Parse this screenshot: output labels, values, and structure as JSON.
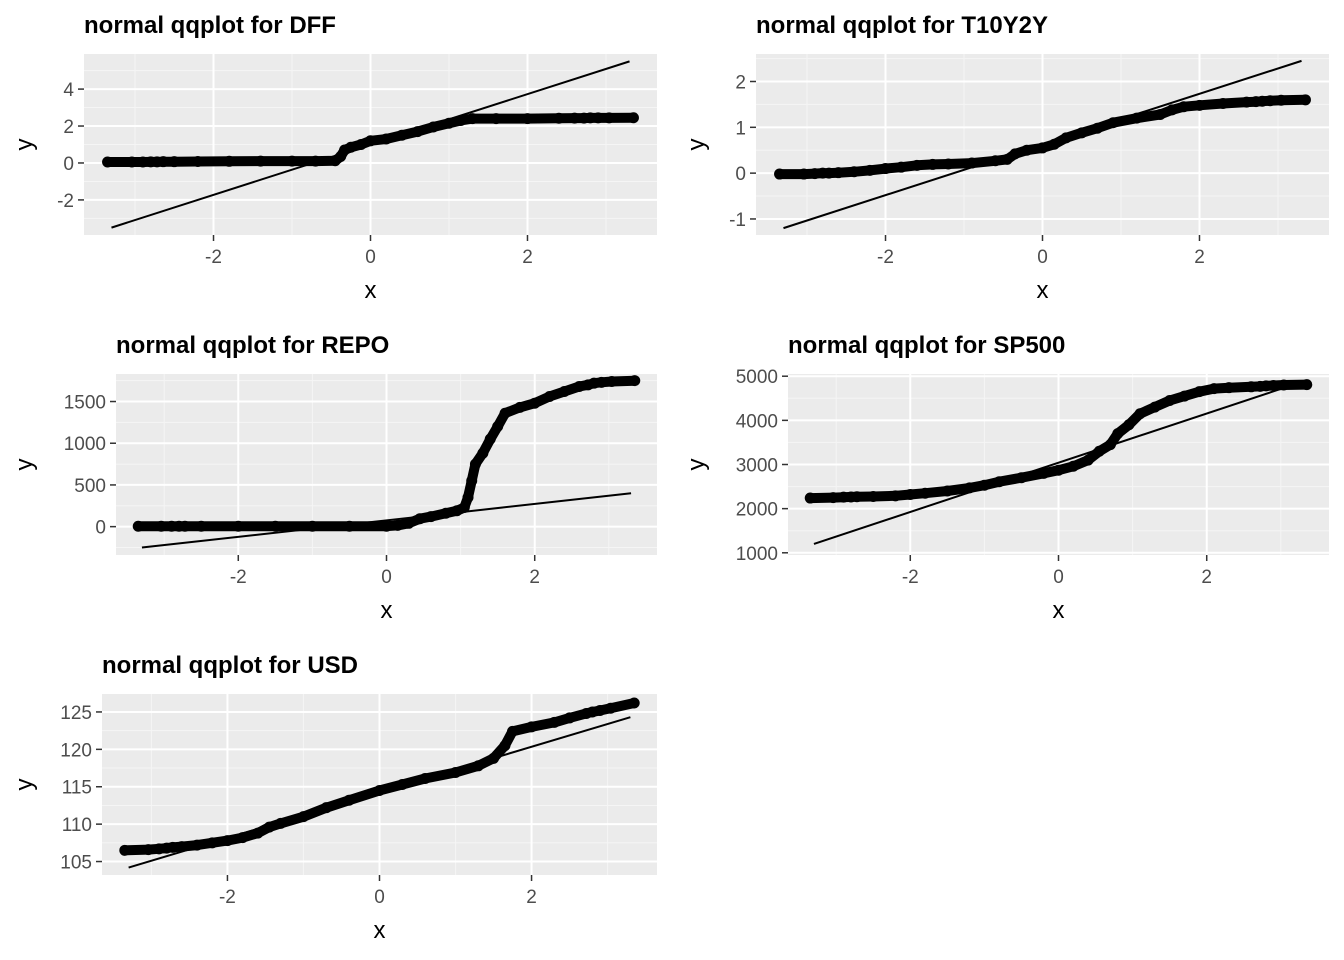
{
  "chart_data": [
    {
      "type": "scatter",
      "title": "normal qqplot for DFF",
      "xlabel": "x",
      "ylabel": "y",
      "xlim": [
        -3.65,
        3.65
      ],
      "ylim": [
        -3.9,
        5.9
      ],
      "xticks": [
        -2,
        0,
        2
      ],
      "yticks": [
        -2,
        0,
        2,
        4
      ],
      "grid": true,
      "points": [
        [
          -3.35,
          0.05
        ],
        [
          -3.04,
          0.05
        ],
        [
          -2.9,
          0.05
        ],
        [
          -2.8,
          0.06
        ],
        [
          -2.72,
          0.06
        ],
        [
          -2.64,
          0.07
        ],
        [
          -2.5,
          0.07
        ],
        [
          -2.2,
          0.08
        ],
        [
          -1.8,
          0.09
        ],
        [
          -1.4,
          0.1
        ],
        [
          -1.0,
          0.1
        ],
        [
          -0.7,
          0.1
        ],
        [
          -0.45,
          0.12
        ],
        [
          -0.38,
          0.35
        ],
        [
          -0.33,
          0.7
        ],
        [
          -0.25,
          0.85
        ],
        [
          -0.12,
          1.0
        ],
        [
          0.0,
          1.2
        ],
        [
          0.2,
          1.3
        ],
        [
          0.4,
          1.5
        ],
        [
          0.6,
          1.7
        ],
        [
          0.8,
          1.95
        ],
        [
          1.0,
          2.15
        ],
        [
          1.15,
          2.3
        ],
        [
          1.3,
          2.4
        ],
        [
          1.6,
          2.4
        ],
        [
          2.0,
          2.4
        ],
        [
          2.4,
          2.42
        ],
        [
          2.6,
          2.43
        ],
        [
          2.72,
          2.43
        ],
        [
          2.8,
          2.44
        ],
        [
          2.9,
          2.44
        ],
        [
          3.04,
          2.44
        ],
        [
          3.35,
          2.45
        ]
      ],
      "line": {
        "x": [
          -3.3,
          3.3
        ],
        "y": [
          -3.5,
          5.5
        ]
      }
    },
    {
      "type": "scatter",
      "title": "normal qqplot for T10Y2Y",
      "xlabel": "x",
      "ylabel": "y",
      "xlim": [
        -3.65,
        3.65
      ],
      "ylim": [
        -1.35,
        2.6
      ],
      "xticks": [
        -2,
        0,
        2
      ],
      "yticks": [
        -1,
        0,
        1,
        2
      ],
      "grid": true,
      "points": [
        [
          -3.35,
          -0.02
        ],
        [
          -3.04,
          -0.02
        ],
        [
          -2.9,
          -0.01
        ],
        [
          -2.8,
          0.0
        ],
        [
          -2.72,
          0.0
        ],
        [
          -2.6,
          0.01
        ],
        [
          -2.4,
          0.03
        ],
        [
          -2.2,
          0.06
        ],
        [
          -2.0,
          0.1
        ],
        [
          -1.8,
          0.13
        ],
        [
          -1.6,
          0.17
        ],
        [
          -1.4,
          0.19
        ],
        [
          -1.2,
          0.2
        ],
        [
          -0.9,
          0.22
        ],
        [
          -0.6,
          0.27
        ],
        [
          -0.45,
          0.3
        ],
        [
          -0.35,
          0.42
        ],
        [
          -0.2,
          0.5
        ],
        [
          0.0,
          0.55
        ],
        [
          0.15,
          0.63
        ],
        [
          0.3,
          0.77
        ],
        [
          0.5,
          0.88
        ],
        [
          0.7,
          0.98
        ],
        [
          0.9,
          1.1
        ],
        [
          1.2,
          1.2
        ],
        [
          1.5,
          1.28
        ],
        [
          1.65,
          1.38
        ],
        [
          1.8,
          1.45
        ],
        [
          2.0,
          1.48
        ],
        [
          2.3,
          1.52
        ],
        [
          2.6,
          1.55
        ],
        [
          2.72,
          1.56
        ],
        [
          2.8,
          1.57
        ],
        [
          2.9,
          1.58
        ],
        [
          3.04,
          1.59
        ],
        [
          3.35,
          1.6
        ]
      ],
      "line": {
        "x": [
          -3.3,
          3.3
        ],
        "y": [
          -1.2,
          2.45
        ]
      }
    },
    {
      "type": "scatter",
      "title": "normal qqplot for REPO",
      "xlabel": "x",
      "ylabel": "y",
      "xlim": [
        -3.65,
        3.65
      ],
      "ylim": [
        -340,
        1830
      ],
      "xticks": [
        -2,
        0,
        2
      ],
      "yticks": [
        0,
        500,
        1000,
        1500
      ],
      "grid": true,
      "points": [
        [
          -3.35,
          5
        ],
        [
          -3.04,
          5
        ],
        [
          -2.9,
          5
        ],
        [
          -2.8,
          5
        ],
        [
          -2.72,
          5
        ],
        [
          -2.5,
          5
        ],
        [
          -2.0,
          5
        ],
        [
          -1.5,
          5
        ],
        [
          -1.0,
          5
        ],
        [
          -0.5,
          5
        ],
        [
          0.0,
          5
        ],
        [
          0.15,
          15
        ],
        [
          0.3,
          40
        ],
        [
          0.45,
          95
        ],
        [
          0.6,
          120
        ],
        [
          0.8,
          160
        ],
        [
          0.95,
          190
        ],
        [
          1.05,
          230
        ],
        [
          1.1,
          350
        ],
        [
          1.15,
          550
        ],
        [
          1.2,
          750
        ],
        [
          1.3,
          880
        ],
        [
          1.4,
          1050
        ],
        [
          1.5,
          1200
        ],
        [
          1.6,
          1360
        ],
        [
          1.8,
          1430
        ],
        [
          2.0,
          1480
        ],
        [
          2.2,
          1560
        ],
        [
          2.4,
          1620
        ],
        [
          2.6,
          1680
        ],
        [
          2.72,
          1700
        ],
        [
          2.8,
          1720
        ],
        [
          2.9,
          1730
        ],
        [
          3.04,
          1740
        ],
        [
          3.35,
          1750
        ]
      ],
      "line": {
        "x": [
          -3.3,
          3.3
        ],
        "y": [
          -250,
          400
        ]
      }
    },
    {
      "type": "scatter",
      "title": "normal qqplot for SP500",
      "xlabel": "x",
      "ylabel": "y",
      "xlim": [
        -3.65,
        3.65
      ],
      "ylim": [
        950,
        5050
      ],
      "xticks": [
        -2,
        0,
        2
      ],
      "yticks": [
        1000,
        2000,
        3000,
        4000,
        5000
      ],
      "grid": true,
      "points": [
        [
          -3.35,
          2240
        ],
        [
          -3.04,
          2250
        ],
        [
          -2.9,
          2260
        ],
        [
          -2.8,
          2265
        ],
        [
          -2.72,
          2270
        ],
        [
          -2.5,
          2275
        ],
        [
          -2.2,
          2290
        ],
        [
          -2.0,
          2320
        ],
        [
          -1.8,
          2350
        ],
        [
          -1.5,
          2400
        ],
        [
          -1.2,
          2470
        ],
        [
          -1.0,
          2530
        ],
        [
          -0.8,
          2610
        ],
        [
          -0.5,
          2700
        ],
        [
          -0.2,
          2800
        ],
        [
          0.0,
          2870
        ],
        [
          0.2,
          2960
        ],
        [
          0.4,
          3100
        ],
        [
          0.55,
          3300
        ],
        [
          0.7,
          3450
        ],
        [
          0.8,
          3700
        ],
        [
          0.95,
          3900
        ],
        [
          1.1,
          4150
        ],
        [
          1.3,
          4300
        ],
        [
          1.5,
          4450
        ],
        [
          1.7,
          4550
        ],
        [
          1.9,
          4650
        ],
        [
          2.1,
          4720
        ],
        [
          2.3,
          4740
        ],
        [
          2.6,
          4760
        ],
        [
          2.72,
          4770
        ],
        [
          2.8,
          4780
        ],
        [
          2.9,
          4790
        ],
        [
          3.04,
          4800
        ],
        [
          3.35,
          4810
        ]
      ],
      "line": {
        "x": [
          -3.3,
          3.3
        ],
        "y": [
          1200,
          4880
        ]
      }
    },
    {
      "type": "scatter",
      "title": "normal qqplot for USD",
      "xlabel": "x",
      "ylabel": "y",
      "xlim": [
        -3.65,
        3.65
      ],
      "ylim": [
        103.2,
        127.4
      ],
      "xticks": [
        -2,
        0,
        2
      ],
      "yticks": [
        105,
        110,
        115,
        120,
        125
      ],
      "grid": true,
      "points": [
        [
          -3.35,
          106.5
        ],
        [
          -3.04,
          106.6
        ],
        [
          -2.9,
          106.7
        ],
        [
          -2.8,
          106.8
        ],
        [
          -2.72,
          106.9
        ],
        [
          -2.6,
          107.0
        ],
        [
          -2.4,
          107.2
        ],
        [
          -2.2,
          107.5
        ],
        [
          -2.0,
          107.8
        ],
        [
          -1.8,
          108.2
        ],
        [
          -1.6,
          108.8
        ],
        [
          -1.45,
          109.6
        ],
        [
          -1.3,
          110.1
        ],
        [
          -1.0,
          111.0
        ],
        [
          -0.7,
          112.2
        ],
        [
          -0.4,
          113.2
        ],
        [
          0.0,
          114.5
        ],
        [
          0.3,
          115.3
        ],
        [
          0.6,
          116.1
        ],
        [
          1.0,
          116.9
        ],
        [
          1.3,
          117.8
        ],
        [
          1.5,
          118.8
        ],
        [
          1.65,
          120.5
        ],
        [
          1.75,
          122.4
        ],
        [
          2.0,
          123.0
        ],
        [
          2.3,
          123.6
        ],
        [
          2.5,
          124.2
        ],
        [
          2.72,
          124.8
        ],
        [
          2.8,
          125.0
        ],
        [
          2.9,
          125.2
        ],
        [
          3.04,
          125.5
        ],
        [
          3.35,
          126.2
        ]
      ],
      "line": {
        "x": [
          -3.3,
          3.3
        ],
        "y": [
          104.2,
          124.3
        ]
      }
    }
  ]
}
